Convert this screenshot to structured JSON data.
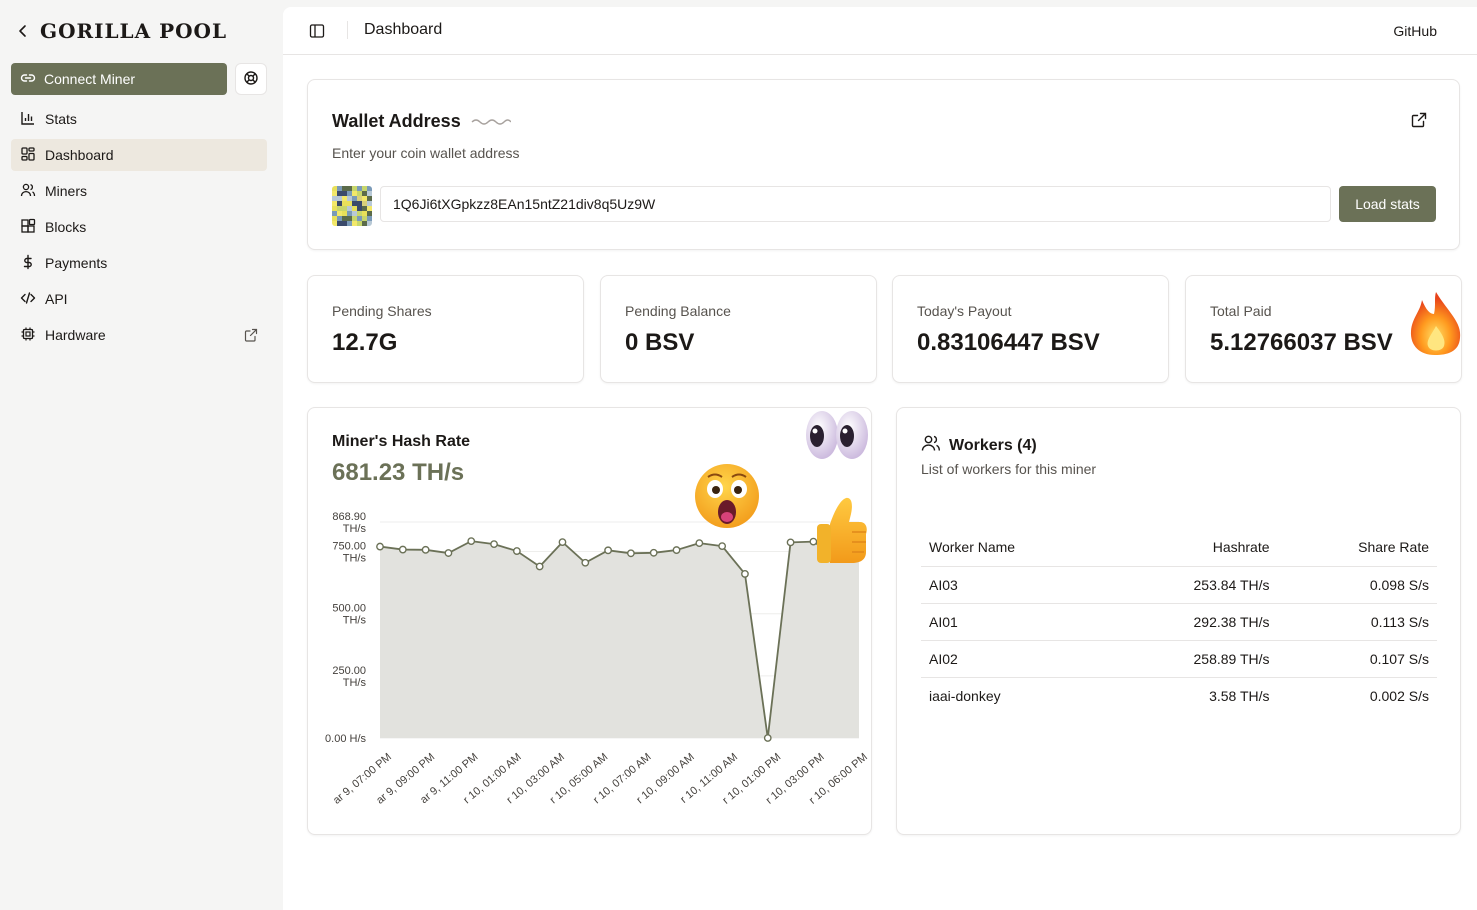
{
  "brand": {
    "name": "GORILLA POOL"
  },
  "sidebar": {
    "connect_label": "Connect Miner",
    "items": [
      {
        "label": "Stats",
        "icon": "bar-chart-icon"
      },
      {
        "label": "Dashboard",
        "icon": "layout-dashboard-icon",
        "active": true
      },
      {
        "label": "Miners",
        "icon": "users-icon"
      },
      {
        "label": "Blocks",
        "icon": "blocks-icon"
      },
      {
        "label": "Payments",
        "icon": "dollar-icon"
      },
      {
        "label": "API",
        "icon": "code-icon"
      },
      {
        "label": "Hardware",
        "icon": "cpu-icon",
        "external": true
      }
    ]
  },
  "header": {
    "title": "Dashboard",
    "github": "GitHub"
  },
  "wallet": {
    "title": "Wallet Address",
    "subtitle": "Enter your coin wallet address",
    "address": "1Q6Ji6tXGpkzz8EAn15ntZ21div8q5Uz9W",
    "load_label": "Load stats"
  },
  "stats": [
    {
      "label": "Pending Shares",
      "value": "12.7G"
    },
    {
      "label": "Pending Balance",
      "value": "0 BSV"
    },
    {
      "label": "Today's Payout",
      "value": "0.83106447 BSV"
    },
    {
      "label": "Total Paid",
      "value": "5.12766037 BSV"
    }
  ],
  "hashrate": {
    "title": "Miner's Hash Rate",
    "value": "681.23 TH/s"
  },
  "chart_data": {
    "type": "area",
    "title": "",
    "xlabel": "",
    "ylabel": "",
    "ylim": [
      0,
      868.9
    ],
    "y_ticks": [
      {
        "value": 868.9,
        "line1": "868.90",
        "line2": "TH/s"
      },
      {
        "value": 750,
        "line1": "750.00",
        "line2": "TH/s"
      },
      {
        "value": 500,
        "line1": "500.00",
        "line2": "TH/s"
      },
      {
        "value": 250,
        "line1": "250.00",
        "line2": "TH/s"
      },
      {
        "value": 0,
        "line1": "0.00 H/s",
        "line2": ""
      }
    ],
    "x_ticks": [
      "ar 9, 07:00 PM",
      "ar 9, 09:00 PM",
      "ar 9, 11:00 PM",
      "r 10, 01:00 AM",
      "r 10, 03:00 AM",
      "r 10, 05:00 AM",
      "r 10, 07:00 AM",
      "r 10, 09:00 AM",
      "r 10, 11:00 AM",
      "r 10, 01:00 PM",
      "r 10, 03:00 PM",
      "r 10, 06:00 PM"
    ],
    "series": [
      {
        "values": [
          770,
          758,
          757,
          744,
          792,
          780,
          752,
          690,
          788,
          705,
          755,
          743,
          745,
          756,
          784,
          772,
          660,
          0,
          787,
          790,
          730,
          780
        ]
      }
    ],
    "grid": true,
    "fill_color": "#e2e2de",
    "line_color": "#6b7157"
  },
  "workers": {
    "title": "Workers (4)",
    "subtitle": "List of workers for this miner",
    "columns": [
      "Worker Name",
      "Hashrate",
      "Share Rate"
    ],
    "rows": [
      [
        "AI03",
        "253.84 TH/s",
        "0.098 S/s"
      ],
      [
        "AI01",
        "292.38 TH/s",
        "0.113 S/s"
      ],
      [
        "AI02",
        "258.89 TH/s",
        "0.107 S/s"
      ],
      [
        "iaai-donkey",
        "3.58 TH/s",
        "0.002 S/s"
      ]
    ]
  },
  "colors": {
    "accent": "#6b7157",
    "active_bg": "#ede8df"
  },
  "icons": [
    "chevron-left-icon",
    "link-icon",
    "lifebuoy-icon",
    "panel-left-icon",
    "external-link-icon",
    "identicon",
    "fire-emoji",
    "eyes-emoji",
    "shocked-emoji",
    "thumbs-up-emoji"
  ]
}
